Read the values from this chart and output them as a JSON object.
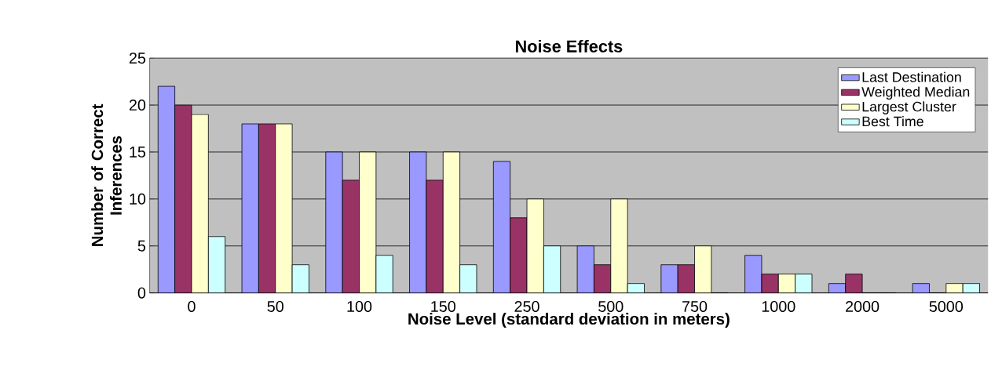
{
  "chart_data": {
    "type": "bar",
    "title": "Noise Effects",
    "xlabel": "Noise Level (standard deviation in meters)",
    "ylabel": "Number of Correct Inferences",
    "categories": [
      "0",
      "50",
      "100",
      "150",
      "250",
      "500",
      "750",
      "1000",
      "2000",
      "5000"
    ],
    "series": [
      {
        "name": "Last Destination",
        "color": "#9999ff",
        "values": [
          22,
          18,
          15,
          15,
          14,
          5,
          3,
          4,
          1,
          1
        ]
      },
      {
        "name": "Weighted Median",
        "color": "#993366",
        "values": [
          20,
          18,
          12,
          12,
          8,
          3,
          3,
          2,
          2,
          0
        ]
      },
      {
        "name": "Largest Cluster",
        "color": "#ffffcc",
        "values": [
          19,
          18,
          15,
          15,
          10,
          10,
          5,
          2,
          0,
          1
        ]
      },
      {
        "name": "Best Time",
        "color": "#ccffff",
        "values": [
          6,
          3,
          4,
          3,
          5,
          1,
          0,
          2,
          0,
          1
        ]
      }
    ],
    "ylim": [
      0,
      25
    ],
    "yticks": [
      0,
      5,
      10,
      15,
      20,
      25
    ],
    "grid": "y",
    "legend": "top right"
  }
}
